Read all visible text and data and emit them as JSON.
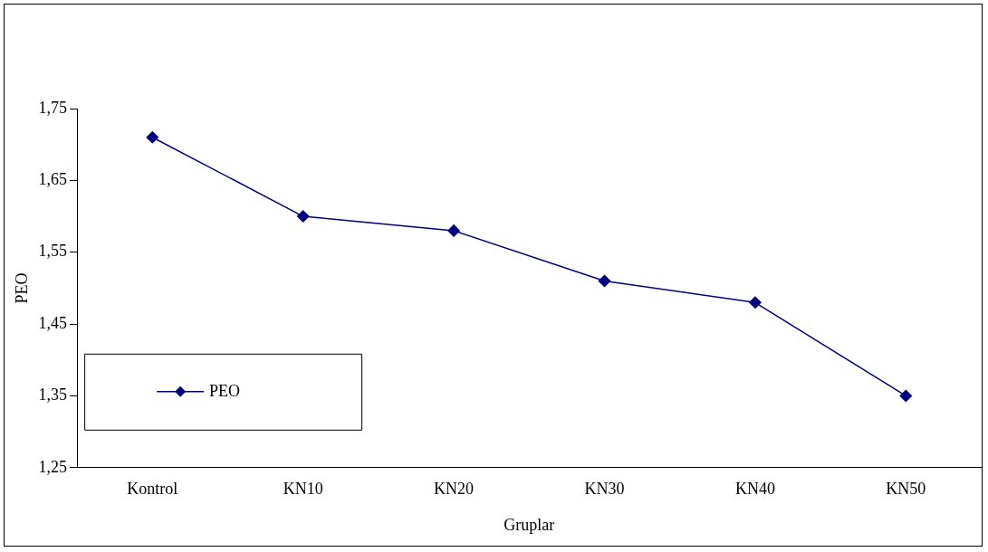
{
  "chart_data": {
    "type": "line",
    "xlabel": "Gruplar",
    "ylabel": "PEO",
    "categories": [
      "Kontrol",
      "KN10",
      "KN20",
      "KN30",
      "KN40",
      "KN50"
    ],
    "series": [
      {
        "name": "PEO",
        "color": "#000080",
        "values": [
          1.71,
          1.6,
          1.58,
          1.51,
          1.48,
          1.35
        ]
      }
    ],
    "ylim": [
      1.25,
      1.75
    ],
    "yticks": [
      {
        "value": 1.25,
        "label": "1,25"
      },
      {
        "value": 1.35,
        "label": "1,35"
      },
      {
        "value": 1.45,
        "label": "1,45"
      },
      {
        "value": 1.55,
        "label": "1,55"
      },
      {
        "value": 1.65,
        "label": "1,65"
      },
      {
        "value": 1.75,
        "label": "1,75"
      }
    ],
    "grid": false,
    "legend": "bottom left",
    "marker": "diamond",
    "line_style": "solid"
  }
}
